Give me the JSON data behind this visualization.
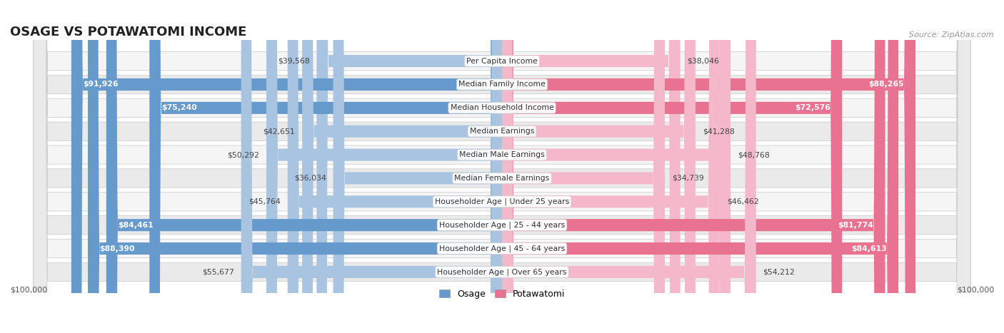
{
  "title": "OSAGE VS POTAWATOMI INCOME",
  "source": "Source: ZipAtlas.com",
  "categories": [
    "Per Capita Income",
    "Median Family Income",
    "Median Household Income",
    "Median Earnings",
    "Median Male Earnings",
    "Median Female Earnings",
    "Householder Age | Under 25 years",
    "Householder Age | 25 - 44 years",
    "Householder Age | 45 - 64 years",
    "Householder Age | Over 65 years"
  ],
  "osage_values": [
    39568,
    91926,
    75240,
    42651,
    50292,
    36034,
    45764,
    84461,
    88390,
    55677
  ],
  "potawatomi_values": [
    38046,
    88265,
    72576,
    41288,
    48768,
    34739,
    46462,
    81774,
    84613,
    54212
  ],
  "max_value": 100000,
  "osage_color_light": "#a8c4e0",
  "osage_color_dark": "#6699cc",
  "potawatomi_color_light": "#f5b8cb",
  "potawatomi_color_dark": "#e8728f",
  "row_bg_even": "#f5f5f5",
  "row_bg_odd": "#eaeaea",
  "row_border": "#d0d0d0",
  "xlabel_left": "$100,000",
  "xlabel_right": "$100,000",
  "title_fontsize": 13,
  "source_fontsize": 8,
  "label_fontsize": 7.8,
  "value_fontsize": 7.8,
  "legend_fontsize": 9,
  "dark_threshold": 65000
}
